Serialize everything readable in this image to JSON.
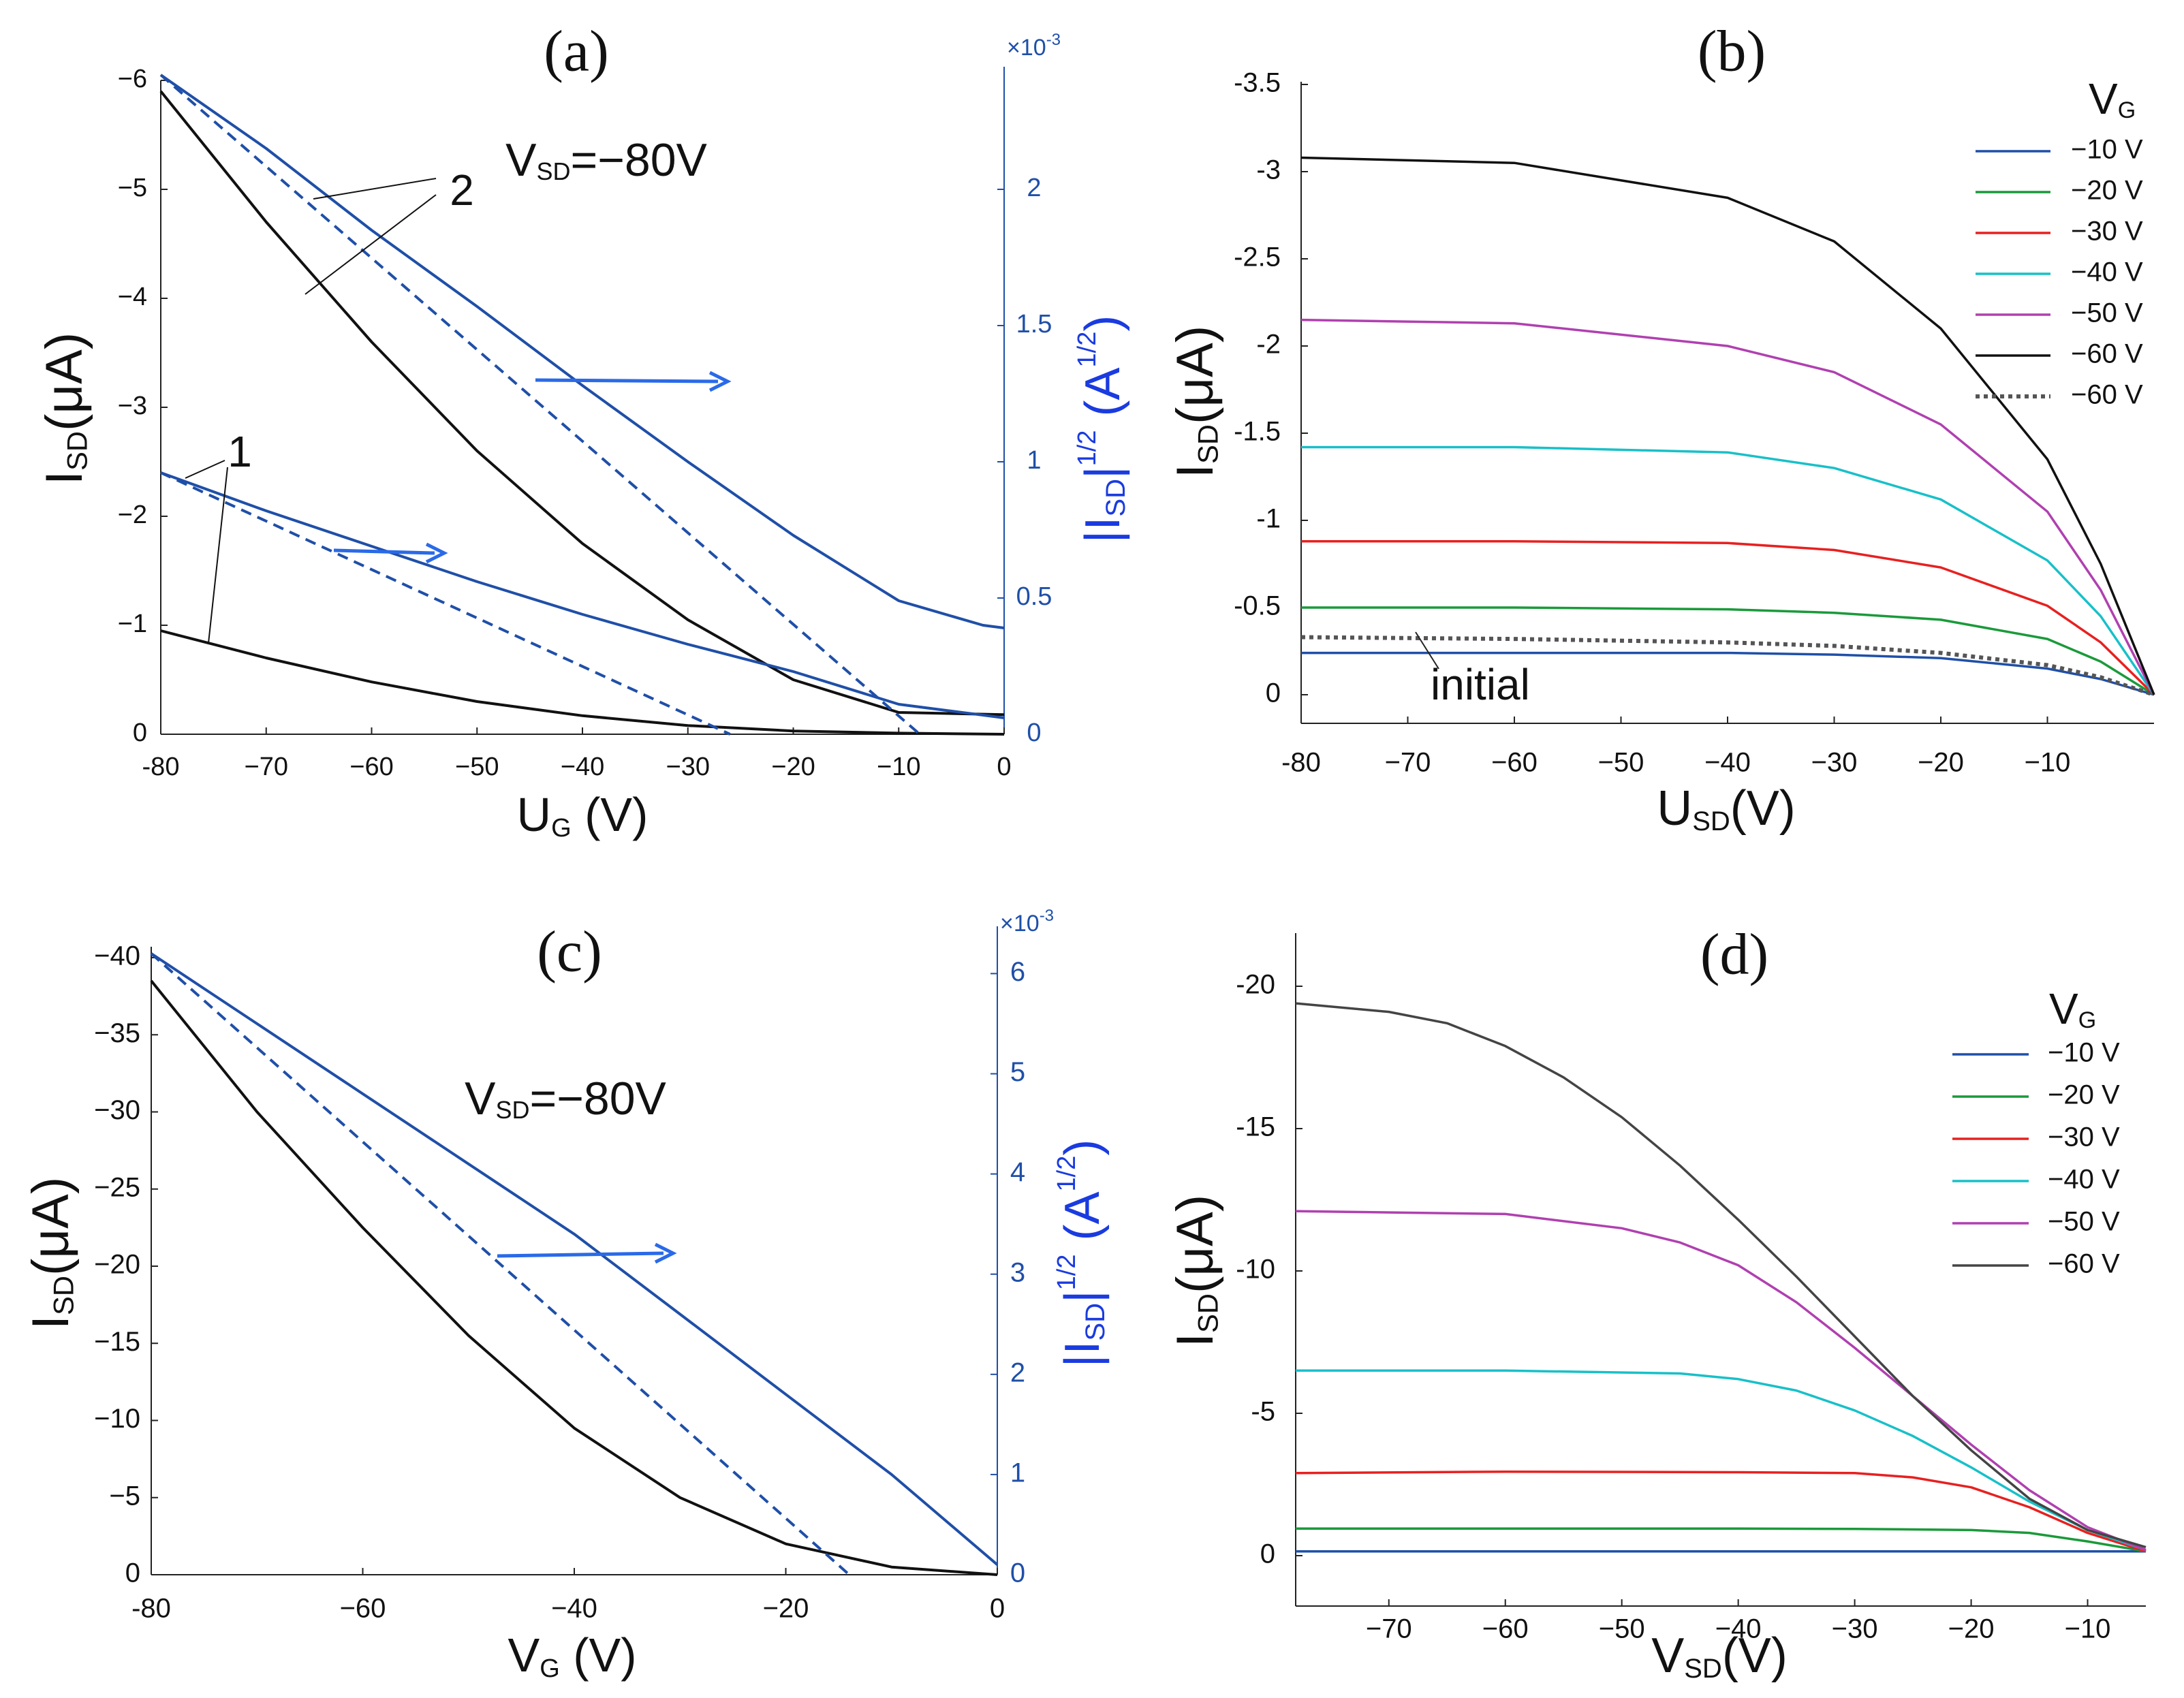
{
  "colors": {
    "black": "#111111",
    "blue": "#1f4fa8",
    "arrow_blue": "#2a6ae8",
    "label_blue": "#1a3be0",
    "g10": "#1f4fa8",
    "g20": "#1a9a3a",
    "g30": "#e82020",
    "g40": "#18c0c8",
    "g50": "#b040b0",
    "g60": "#111111",
    "g60d": "#444444",
    "initial": "#555555"
  },
  "chart_data": [
    {
      "panel": "(a)",
      "type": "line",
      "annotation_vsd": "=−80V",
      "xlabel": "(V)",
      "ylabel": "(μA)",
      "ylabel_right": "|",
      "right_exp": "×10",
      "xlim": [
        -80,
        0
      ],
      "ylim": [
        0,
        -6
      ],
      "ylim_right": [
        0,
        0.0024
      ],
      "x_ticks": [
        "-80",
        "−70",
        "−60",
        "−50",
        "−40",
        "−30",
        "−20",
        "−10",
        "0"
      ],
      "y_ticks": [
        "0",
        "−1",
        "−2",
        "−3",
        "−4",
        "−5",
        "−6"
      ],
      "y_ticks_right": [
        "0",
        "0.5",
        "1",
        "1.5",
        "2"
      ],
      "curve_labels": [
        "1",
        "2"
      ],
      "series": [
        {
          "name": "curve 1 I_SD",
          "axis": "left",
          "x": [
            -80,
            -70,
            -60,
            -50,
            -40,
            -30,
            -20,
            -10,
            0
          ],
          "values": [
            -0.95,
            -0.7,
            -0.48,
            -0.3,
            -0.17,
            -0.08,
            -0.03,
            -0.01,
            0
          ]
        },
        {
          "name": "curve 2 I_SD",
          "axis": "left",
          "x": [
            -80,
            -70,
            -60,
            -50,
            -40,
            -30,
            -20,
            -10,
            0
          ],
          "values": [
            -5.9,
            -4.7,
            -3.6,
            -2.6,
            -1.75,
            -1.05,
            -0.5,
            -0.2,
            -0.18
          ]
        },
        {
          "name": "curve 1 |I_SD|^1/2",
          "axis": "right",
          "x": [
            -80,
            -70,
            -60,
            -50,
            -40,
            -30,
            -20,
            -10,
            0
          ],
          "values": [
            0.00096,
            0.00082,
            0.00069,
            0.00056,
            0.00044,
            0.00033,
            0.00023,
            0.00011,
            6e-05
          ]
        },
        {
          "name": "curve 2 |I_SD|^1/2",
          "axis": "right",
          "x": [
            -80,
            -70,
            -60,
            -50,
            -40,
            -30,
            -20,
            -10,
            -2,
            0
          ],
          "values": [
            0.00242,
            0.00215,
            0.00185,
            0.00157,
            0.00128,
            0.001,
            0.00073,
            0.00049,
            0.0004,
            0.00039
          ]
        },
        {
          "name": "curve 2 linear fit",
          "axis": "right",
          "style": "dashed",
          "x": [
            -80,
            -8
          ],
          "values": [
            0.00242,
            0
          ]
        },
        {
          "name": "curve 1 linear fit",
          "axis": "right",
          "style": "dashed",
          "x": [
            -80,
            -26
          ],
          "values": [
            0.00096,
            0
          ]
        }
      ]
    },
    {
      "panel": "(b)",
      "type": "line",
      "xlabel": "(V)",
      "ylabel": "(μA)",
      "xlim": [
        -80,
        0
      ],
      "ylim": [
        0.1,
        -3.5
      ],
      "x_ticks": [
        "-80",
        "−70",
        "−60",
        "−50",
        "−40",
        "−30",
        "−20",
        "−10"
      ],
      "y_ticks": [
        "0",
        "-0.5",
        "-1",
        "-1.5",
        "-2",
        "-2.5",
        "-3",
        "-3.5"
      ],
      "legend_title": "V",
      "legend_sub": "G",
      "annotation": "initial",
      "series": [
        {
          "name": "−10 V",
          "x": [
            -80,
            -60,
            -40,
            -30,
            -20,
            -10,
            -5,
            0
          ],
          "values": [
            -0.24,
            -0.24,
            -0.24,
            -0.23,
            -0.21,
            -0.15,
            -0.09,
            0
          ]
        },
        {
          "name": "−20 V",
          "x": [
            -80,
            -60,
            -40,
            -30,
            -20,
            -10,
            -5,
            0
          ],
          "values": [
            -0.5,
            -0.5,
            -0.49,
            -0.47,
            -0.43,
            -0.32,
            -0.19,
            0
          ]
        },
        {
          "name": "−30 V",
          "x": [
            -80,
            -60,
            -40,
            -30,
            -20,
            -10,
            -5,
            0
          ],
          "values": [
            -0.88,
            -0.88,
            -0.87,
            -0.83,
            -0.73,
            -0.51,
            -0.3,
            0
          ]
        },
        {
          "name": "−40 V",
          "x": [
            -80,
            -60,
            -40,
            -30,
            -20,
            -10,
            -5,
            0
          ],
          "values": [
            -1.42,
            -1.42,
            -1.39,
            -1.3,
            -1.12,
            -0.77,
            -0.45,
            0
          ]
        },
        {
          "name": "−50 V",
          "x": [
            -80,
            -60,
            -40,
            -30,
            -20,
            -10,
            -5,
            0
          ],
          "values": [
            -2.15,
            -2.13,
            -2.0,
            -1.85,
            -1.55,
            -1.05,
            -0.6,
            0
          ]
        },
        {
          "name": "−60 V",
          "x": [
            -80,
            -60,
            -40,
            -30,
            -20,
            -10,
            -5,
            0
          ],
          "values": [
            -3.08,
            -3.05,
            -2.85,
            -2.6,
            -2.1,
            -1.35,
            -0.75,
            0
          ]
        },
        {
          "name": "−60 V",
          "style": "dotted",
          "x": [
            -80,
            -60,
            -40,
            -30,
            -20,
            -10,
            -5,
            0
          ],
          "values": [
            -0.33,
            -0.32,
            -0.3,
            -0.28,
            -0.24,
            -0.17,
            -0.1,
            0
          ]
        }
      ]
    },
    {
      "panel": "(c)",
      "type": "line",
      "annotation_vsd": "=−80V",
      "xlabel": "(V)",
      "ylabel": "(μA)",
      "ylabel_right": "|",
      "right_exp": "×10",
      "xlim": [
        -80,
        0
      ],
      "ylim": [
        0,
        -40
      ],
      "ylim_right": [
        0,
        0.0062
      ],
      "x_ticks": [
        "-80",
        "−60",
        "−40",
        "−20",
        "0"
      ],
      "y_ticks": [
        "0",
        "−5",
        "−10",
        "−15",
        "−20",
        "−25",
        "−30",
        "−35",
        "−40"
      ],
      "y_ticks_right": [
        "0",
        "1",
        "2",
        "3",
        "4",
        "5",
        "6"
      ],
      "series": [
        {
          "name": "I_SD",
          "axis": "left",
          "x": [
            -80,
            -70,
            -60,
            -50,
            -40,
            -30,
            -20,
            -10,
            0
          ],
          "values": [
            -38.5,
            -30,
            -22.5,
            -15.5,
            -9.5,
            -5,
            -2,
            -0.5,
            0
          ]
        },
        {
          "name": "|I_SD|^1/2",
          "axis": "right",
          "x": [
            -80,
            -70,
            -60,
            -50,
            -40,
            -30,
            -20,
            -10,
            0
          ],
          "values": [
            0.0062,
            0.0055,
            0.0048,
            0.0041,
            0.0034,
            0.0026,
            0.0018,
            0.001,
            0.0001
          ]
        },
        {
          "name": "linear fit",
          "axis": "right",
          "style": "dashed",
          "x": [
            -80,
            -14
          ],
          "values": [
            0.0062,
            0
          ]
        }
      ]
    },
    {
      "panel": "(d)",
      "type": "line",
      "xlabel": "(V)",
      "ylabel": "(μA)",
      "xlim": [
        -78,
        -5
      ],
      "ylim": [
        1.5,
        -21
      ],
      "x_ticks": [
        "−70",
        "−60",
        "−50",
        "−40",
        "−30",
        "−20",
        "−10"
      ],
      "y_ticks": [
        "0",
        "-5",
        "-10",
        "-15",
        "-20"
      ],
      "legend_title": "V",
      "legend_sub": "G",
      "series": [
        {
          "name": "−10 V",
          "x": [
            -78,
            -60,
            -40,
            -20,
            -10,
            -5
          ],
          "values": [
            -0.15,
            -0.15,
            -0.15,
            -0.15,
            -0.15,
            -0.15
          ]
        },
        {
          "name": "−20 V",
          "x": [
            -78,
            -60,
            -40,
            -30,
            -20,
            -15,
            -10,
            -5
          ],
          "values": [
            -0.95,
            -0.95,
            -0.95,
            -0.94,
            -0.9,
            -0.8,
            -0.5,
            -0.15
          ]
        },
        {
          "name": "−30 V",
          "x": [
            -78,
            -60,
            -40,
            -30,
            -25,
            -20,
            -15,
            -10,
            -5
          ],
          "values": [
            -2.9,
            -2.95,
            -2.93,
            -2.9,
            -2.75,
            -2.4,
            -1.7,
            -0.8,
            -0.15
          ]
        },
        {
          "name": "−40 V",
          "x": [
            -78,
            -60,
            -45,
            -40,
            -35,
            -30,
            -25,
            -20,
            -15,
            -10,
            -5
          ],
          "values": [
            -6.5,
            -6.5,
            -6.4,
            -6.2,
            -5.8,
            -5.1,
            -4.2,
            -3.1,
            -1.9,
            -0.9,
            -0.2
          ]
        },
        {
          "name": "−50 V",
          "x": [
            -78,
            -60,
            -50,
            -45,
            -40,
            -35,
            -30,
            -25,
            -20,
            -15,
            -10,
            -5
          ],
          "values": [
            -12.1,
            -12.0,
            -11.5,
            -11.0,
            -10.2,
            -8.9,
            -7.3,
            -5.6,
            -3.9,
            -2.3,
            -1.0,
            -0.2
          ]
        },
        {
          "name": "−60 V",
          "x": [
            -78,
            -70,
            -65,
            -60,
            -55,
            -50,
            -45,
            -40,
            -35,
            -30,
            -25,
            -20,
            -15,
            -10,
            -5
          ],
          "values": [
            -19.4,
            -19.1,
            -18.7,
            -17.9,
            -16.8,
            -15.4,
            -13.7,
            -11.8,
            -9.8,
            -7.7,
            -5.6,
            -3.7,
            -2.0,
            -0.9,
            -0.3
          ]
        }
      ]
    }
  ],
  "axis_letters": {
    "i": "I",
    "u": "U",
    "v": "V",
    "sd": "SD",
    "g": "G",
    "half": "1/2",
    "a": "(A",
    "close": ")",
    "exp": "-3",
    "initial": "initial"
  }
}
